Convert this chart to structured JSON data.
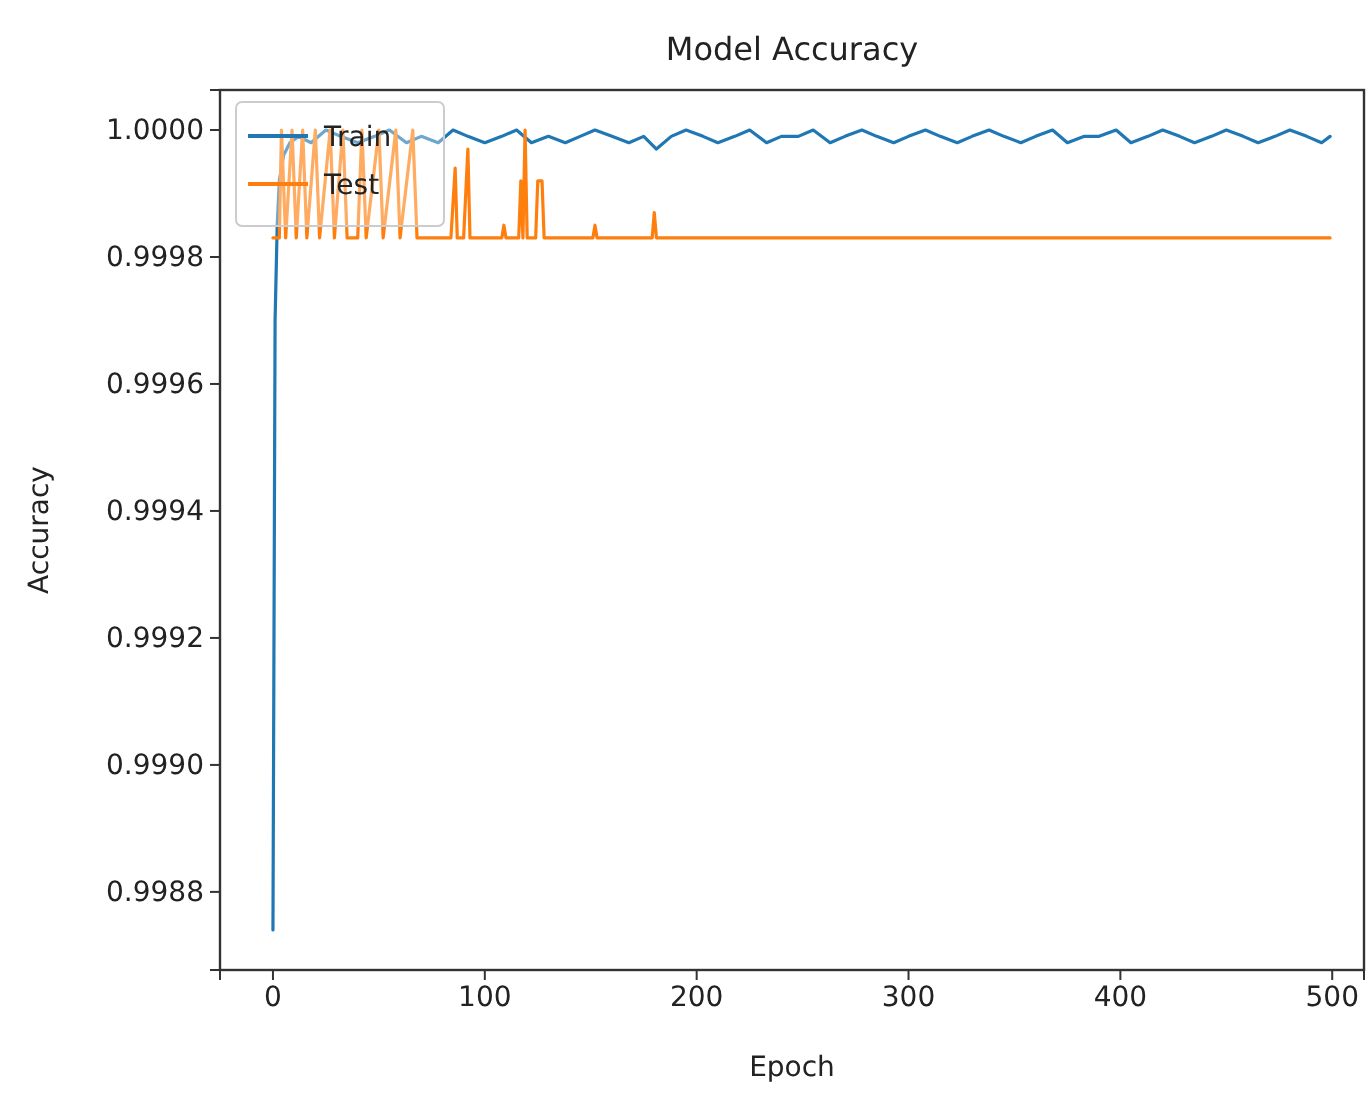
{
  "chart_data": {
    "type": "line",
    "title": "Model Accuracy",
    "xlabel": "Epoch",
    "ylabel": "Accuracy",
    "xlim": [
      -25,
      515
    ],
    "xticks": [
      0,
      100,
      200,
      300,
      400,
      500
    ],
    "ylim": [
      0.998677,
      1.000063
    ],
    "yticks": [
      {
        "value": 0.9988,
        "label": "0.9988"
      },
      {
        "value": 0.999,
        "label": "0.9990"
      },
      {
        "value": 0.9992,
        "label": "0.9992"
      },
      {
        "value": 0.9994,
        "label": "0.9994"
      },
      {
        "value": 0.9996,
        "label": "0.9996"
      },
      {
        "value": 0.9998,
        "label": "0.9998"
      },
      {
        "value": 1.0,
        "label": "1.0000"
      }
    ],
    "legend": "top left",
    "grid": false,
    "series": [
      {
        "name": "Train",
        "color": "#1f77b4",
        "x": [
          0,
          1,
          2,
          3,
          5,
          8,
          12,
          18,
          25,
          32,
          40,
          48,
          55,
          63,
          70,
          78,
          85,
          92,
          100,
          108,
          115,
          122,
          130,
          138,
          145,
          152,
          160,
          168,
          175,
          181,
          188,
          195,
          203,
          210,
          218,
          225,
          233,
          240,
          248,
          255,
          263,
          270,
          278,
          285,
          293,
          300,
          308,
          315,
          323,
          330,
          338,
          345,
          353,
          360,
          368,
          375,
          383,
          390,
          398,
          405,
          413,
          420,
          428,
          435,
          443,
          450,
          458,
          465,
          473,
          480,
          488,
          495,
          499
        ],
        "values": [
          0.99874,
          0.9997,
          0.99985,
          0.99992,
          0.99996,
          0.99998,
          0.99999,
          0.99998,
          1.0,
          0.99999,
          0.99998,
          0.99999,
          1.0,
          0.99998,
          0.99999,
          0.99998,
          1.0,
          0.99999,
          0.99998,
          0.99999,
          1.0,
          0.99998,
          0.99999,
          0.99998,
          0.99999,
          1.0,
          0.99999,
          0.99998,
          0.99999,
          0.99997,
          0.99999,
          1.0,
          0.99999,
          0.99998,
          0.99999,
          1.0,
          0.99998,
          0.99999,
          0.99999,
          1.0,
          0.99998,
          0.99999,
          1.0,
          0.99999,
          0.99998,
          0.99999,
          1.0,
          0.99999,
          0.99998,
          0.99999,
          1.0,
          0.99999,
          0.99998,
          0.99999,
          1.0,
          0.99998,
          0.99999,
          0.99999,
          1.0,
          0.99998,
          0.99999,
          1.0,
          0.99999,
          0.99998,
          0.99999,
          1.0,
          0.99999,
          0.99998,
          0.99999,
          1.0,
          0.99999,
          0.99998,
          0.99999
        ]
      },
      {
        "name": "Test",
        "color": "#ff7f0e",
        "x": [
          0,
          3,
          4,
          6,
          9,
          11,
          14,
          16,
          20,
          22,
          27,
          29,
          33,
          35,
          40,
          42,
          44,
          50,
          52,
          58,
          60,
          66,
          68,
          84,
          86,
          87,
          90,
          92,
          93,
          108,
          109,
          110,
          116,
          117,
          118,
          119,
          120,
          124,
          125,
          127,
          128,
          151,
          152,
          153,
          179,
          180,
          181,
          499
        ],
        "values": [
          0.99983,
          0.99983,
          1.0,
          0.99983,
          1.0,
          0.99983,
          1.0,
          0.99983,
          1.0,
          0.99983,
          1.0,
          0.99983,
          1.0,
          0.99983,
          0.99983,
          1.0,
          0.99983,
          1.0,
          0.99983,
          1.0,
          0.99983,
          1.0,
          0.99983,
          0.99983,
          0.99994,
          0.99983,
          0.99983,
          0.99997,
          0.99983,
          0.99983,
          0.99985,
          0.99983,
          0.99983,
          0.99992,
          0.99983,
          1.0,
          0.99983,
          0.99983,
          0.99992,
          0.99992,
          0.99983,
          0.99983,
          0.99985,
          0.99983,
          0.99983,
          0.99987,
          0.99983,
          0.99983
        ]
      }
    ]
  }
}
